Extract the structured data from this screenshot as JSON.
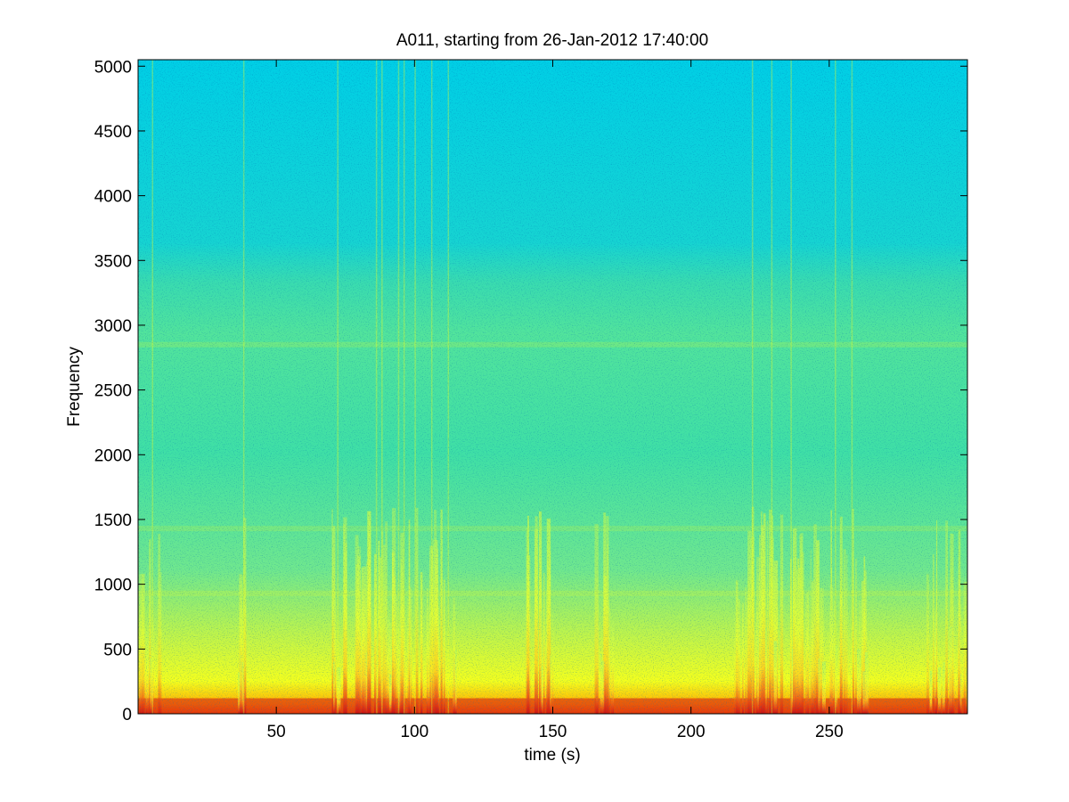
{
  "chart_data": {
    "type": "heatmap",
    "title": "A011, starting from 26-Jan-2012 17:40:00",
    "xlabel": "time (s)",
    "ylabel": "Frequency",
    "xlim": [
      0,
      300
    ],
    "ylim": [
      0,
      5050
    ],
    "xticks": [
      50,
      100,
      150,
      200,
      250
    ],
    "xtick_labels": [
      "50",
      "100",
      "150",
      "200",
      "250"
    ],
    "yticks": [
      0,
      500,
      1000,
      1500,
      2000,
      2500,
      3000,
      3500,
      4000,
      4500,
      5000
    ],
    "ytick_labels": [
      "0",
      "500",
      "1000",
      "1500",
      "2000",
      "2500",
      "3000",
      "3500",
      "4000",
      "4500",
      "5000"
    ],
    "colormap": "jet",
    "colors": {
      "background_high_freq": "#00d2e6",
      "mid_band": "#46e6a0",
      "low_band": "#f0ff20",
      "intense": "#d81010"
    },
    "high_activity_intervals": [
      {
        "start": 0,
        "end": 8
      },
      {
        "start": 35,
        "end": 40
      },
      {
        "start": 70,
        "end": 75
      },
      {
        "start": 78,
        "end": 115
      },
      {
        "start": 140,
        "end": 150
      },
      {
        "start": 165,
        "end": 172
      },
      {
        "start": 215,
        "end": 265
      },
      {
        "start": 285,
        "end": 300
      }
    ],
    "harmonic_bands_hz": [
      930,
      1430,
      2850
    ]
  }
}
